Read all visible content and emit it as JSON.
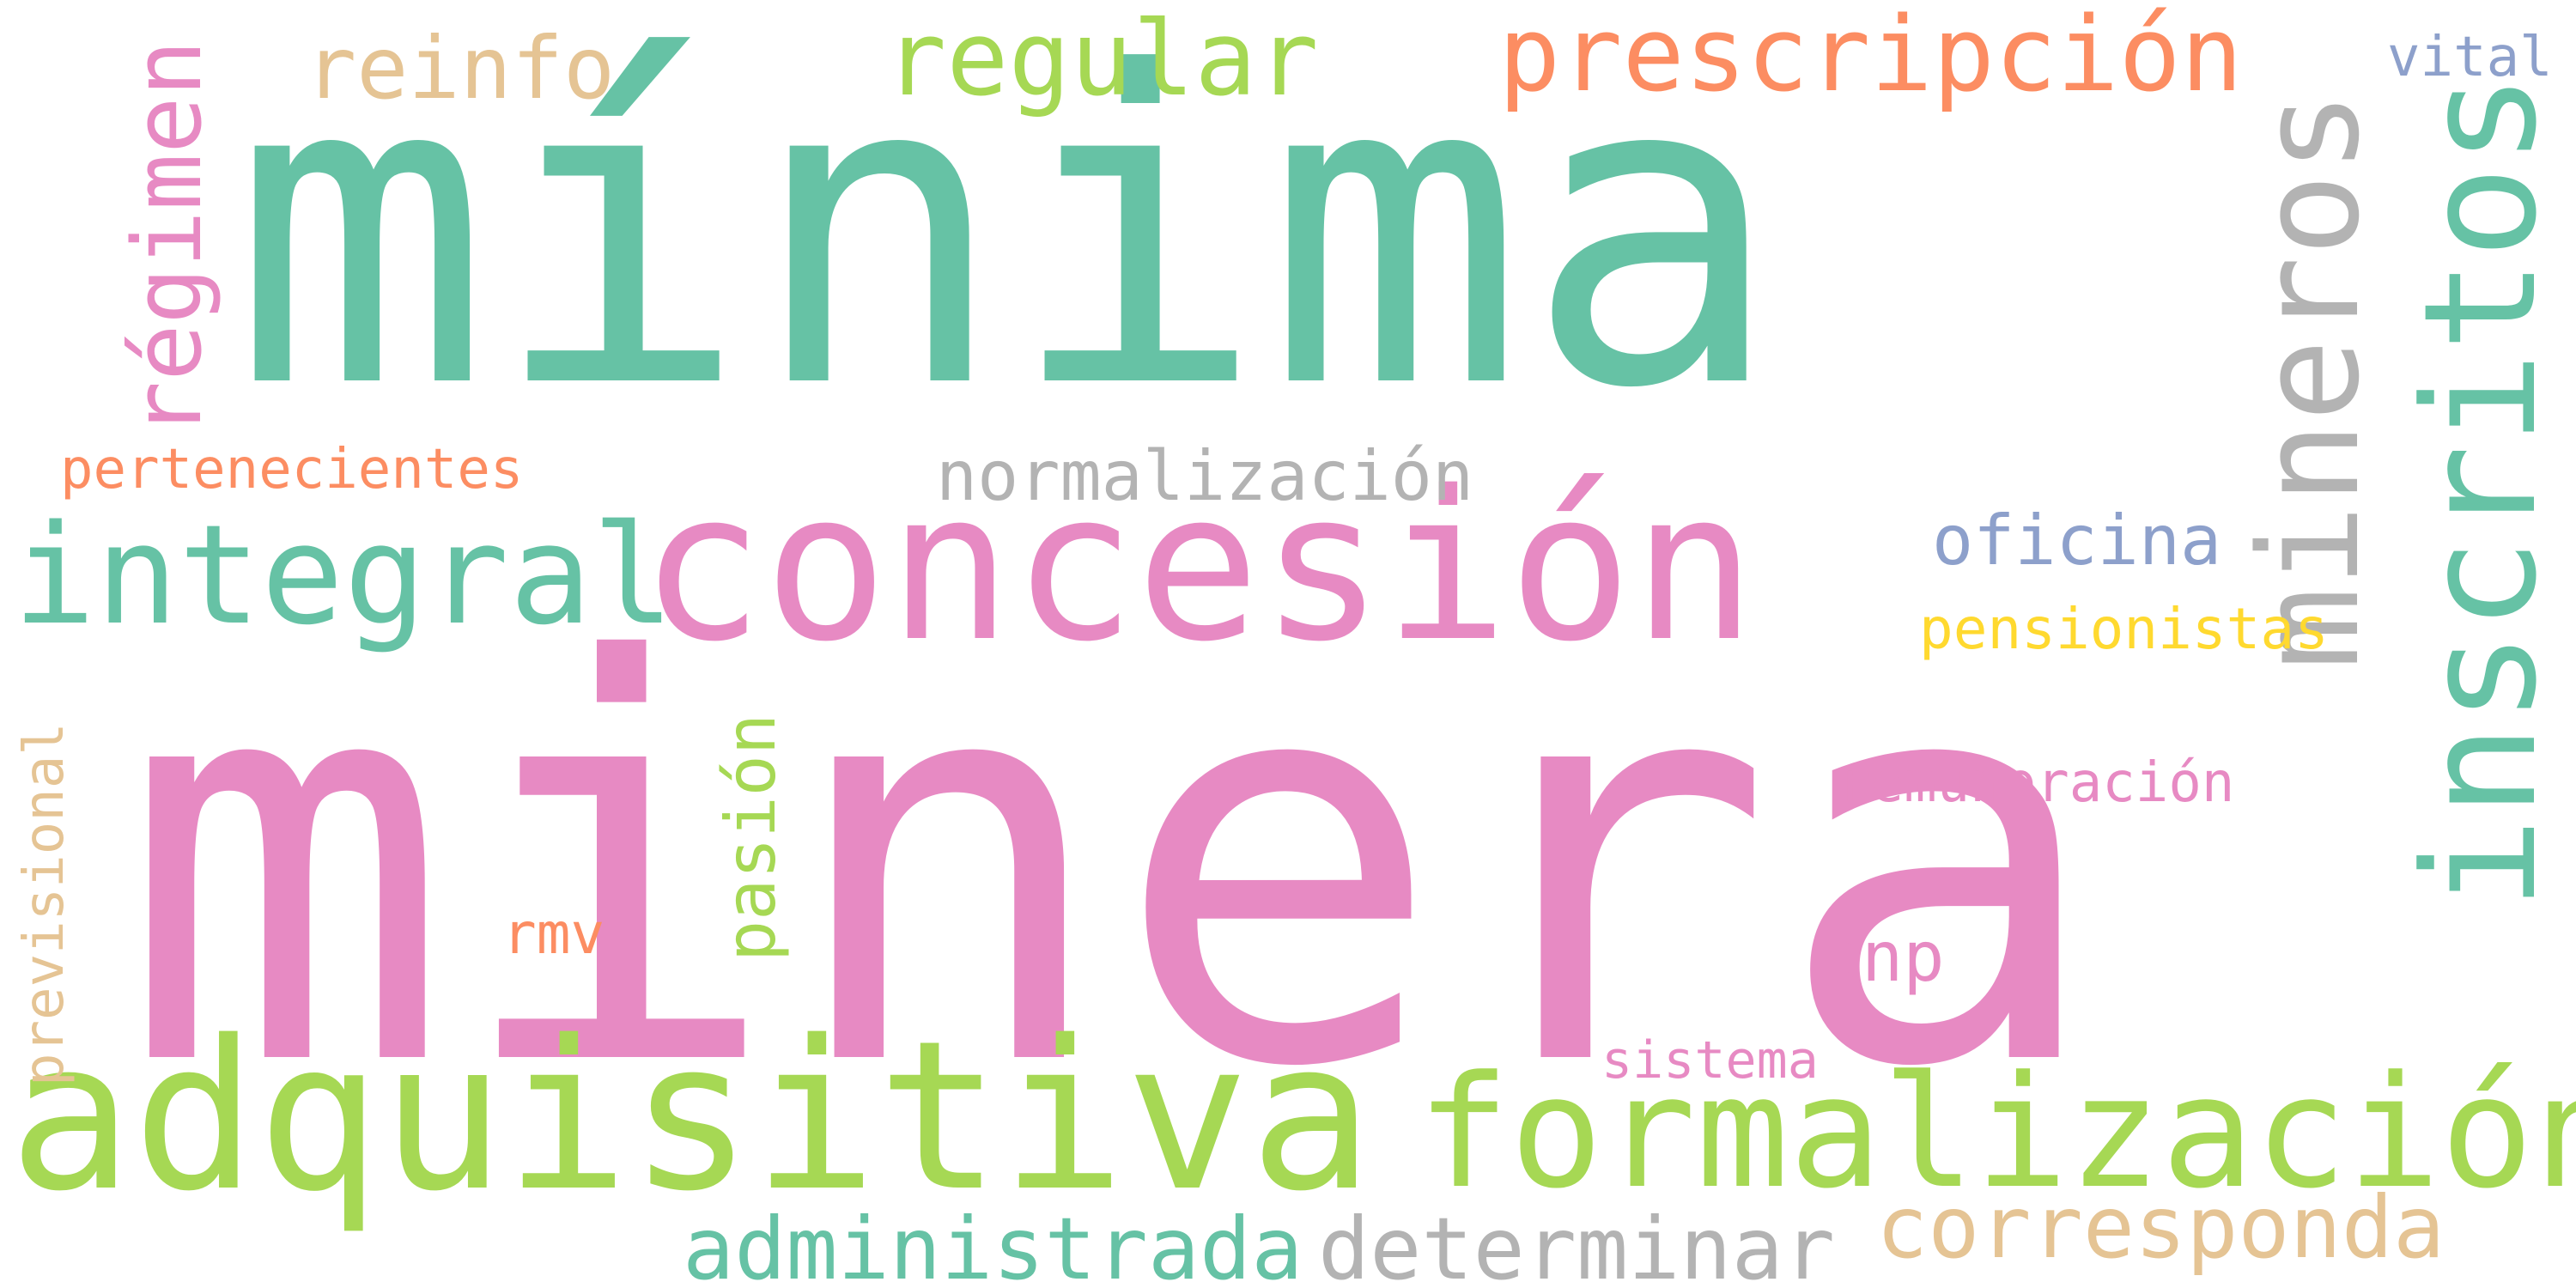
{
  "words": [
    {
      "id": "minima",
      "text": "mínima",
      "color": "#66c2a5"
    },
    {
      "id": "minera",
      "text": "minera",
      "color": "#e78ac3"
    },
    {
      "id": "adquisitiva",
      "text": "adquisitiva",
      "color": "#a6d854"
    },
    {
      "id": "formalizacion",
      "text": "formalización",
      "color": "#a6d854"
    },
    {
      "id": "concesion",
      "text": "concesión",
      "color": "#e78ac3"
    },
    {
      "id": "integral",
      "text": "integral",
      "color": "#66c2a5"
    },
    {
      "id": "inscritos",
      "text": "inscritos",
      "color": "#66c2a5"
    },
    {
      "id": "mineros",
      "text": "mineros",
      "color": "#b3b3b3"
    },
    {
      "id": "regimen",
      "text": "régimen",
      "color": "#e78ac3"
    },
    {
      "id": "regular",
      "text": "regular",
      "color": "#a6d854"
    },
    {
      "id": "prescripcion",
      "text": "prescripción",
      "color": "#fc8d62"
    },
    {
      "id": "reinfo",
      "text": "reinfo",
      "color": "#e5c494"
    },
    {
      "id": "normalizacion",
      "text": "normalización",
      "color": "#b3b3b3"
    },
    {
      "id": "oficina",
      "text": "oficina",
      "color": "#8da0cb"
    },
    {
      "id": "pensionistas",
      "text": "pensionistas",
      "color": "#ffd92f"
    },
    {
      "id": "remuneracion",
      "text": "remuneración",
      "color": "#e78ac3"
    },
    {
      "id": "onp",
      "text": "onp",
      "color": "#e78ac3"
    },
    {
      "id": "pasion",
      "text": "pasión",
      "color": "#a6d854"
    },
    {
      "id": "rmv",
      "text": "rmv",
      "color": "#fc8d62"
    },
    {
      "id": "sistema",
      "text": "sistema",
      "color": "#e78ac3"
    },
    {
      "id": "administrada",
      "text": "administrada",
      "color": "#66c2a5"
    },
    {
      "id": "determinar",
      "text": "determinar",
      "color": "#b3b3b3"
    },
    {
      "id": "corresponda",
      "text": "corresponda",
      "color": "#e5c494"
    },
    {
      "id": "previsional",
      "text": "previsional",
      "color": "#e5c494"
    },
    {
      "id": "pertenecientes",
      "text": "pertenecientes",
      "color": "#fc8d62"
    },
    {
      "id": "vital",
      "text": "vital",
      "color": "#8da0cb"
    }
  ]
}
